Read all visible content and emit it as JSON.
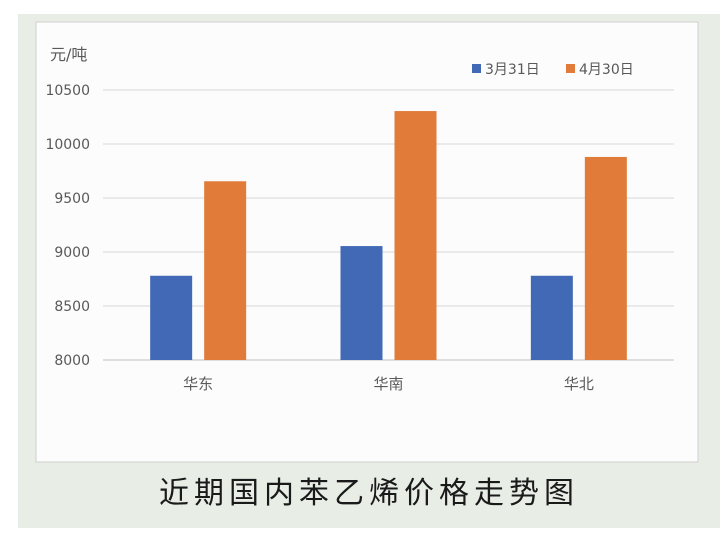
{
  "caption": "近期国内苯乙烯价格走势图",
  "chart_data": {
    "type": "bar",
    "categories": [
      "华东",
      "华南",
      "华北"
    ],
    "series": [
      {
        "name": "3月31日",
        "values": [
          8780,
          9055,
          8780
        ],
        "color": "#4169b5"
      },
      {
        "name": "4月30日",
        "values": [
          9655,
          10305,
          9880
        ],
        "color": "#e07b39"
      }
    ],
    "unit_label": "元/吨",
    "ylim": [
      8000,
      10500
    ],
    "yticks": [
      "8000",
      "8500",
      "9000",
      "9500",
      "10000",
      "10500"
    ],
    "ytick_values": [
      8000,
      8500,
      9000,
      9500,
      10000,
      10500
    ],
    "grid": true,
    "legend_position": "top-right"
  }
}
